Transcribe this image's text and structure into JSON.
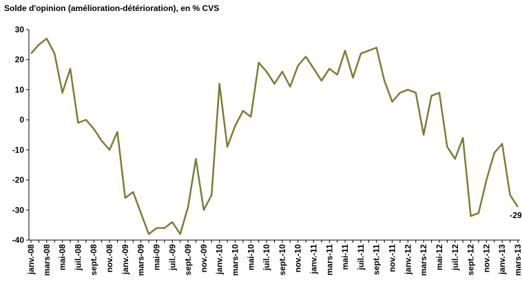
{
  "chart_data": {
    "type": "line",
    "title": "Solde d'opinion (amélioration-détérioration), en % CVS",
    "categories": [
      "janv.-08",
      null,
      "mars-08",
      null,
      "mai-08",
      null,
      "juil.-08",
      null,
      "sept.-08",
      null,
      "nov.-08",
      null,
      "janv.-09",
      null,
      "mars-09",
      null,
      "mai-09",
      null,
      "juil.-09",
      null,
      "sept.-09",
      null,
      "nov.-09",
      null,
      "janv.-10",
      null,
      "mars-10",
      null,
      "mai-10",
      null,
      "juil.-10",
      null,
      "sept.-10",
      null,
      "nov.-10",
      null,
      "janv.-11",
      null,
      "mars-11",
      null,
      "mai-11",
      null,
      "juil.-11",
      null,
      "sept.-11",
      null,
      "nov.-11",
      null,
      "janv.-12",
      null,
      "mars-12",
      null,
      "mai-12",
      null,
      "juil.-12",
      null,
      "sept.-12",
      null,
      "nov.-12",
      null,
      "janv.-13",
      null,
      "mars-13"
    ],
    "values": [
      22,
      25,
      27,
      22,
      9,
      17,
      -1,
      0,
      -3,
      -7,
      -10,
      -4,
      -26,
      -24,
      -31,
      -38,
      -36,
      -36,
      -34,
      -38,
      -29,
      -13,
      -30,
      -25,
      12,
      -9,
      -2,
      3,
      1,
      19,
      16,
      12,
      16,
      11,
      18,
      21,
      17,
      13,
      17,
      15,
      23,
      14,
      22,
      23,
      24,
      13,
      6,
      9,
      10,
      9,
      -5,
      8,
      9,
      -9,
      -13,
      -6,
      -32,
      -31,
      -20,
      -11,
      -8,
      -25,
      -29
    ],
    "color": "#7b7c32",
    "ylim": [
      -40,
      30
    ],
    "yticks": [
      -40,
      -30,
      -20,
      -10,
      0,
      10,
      20,
      30
    ],
    "labeled_points": [
      62
    ]
  }
}
